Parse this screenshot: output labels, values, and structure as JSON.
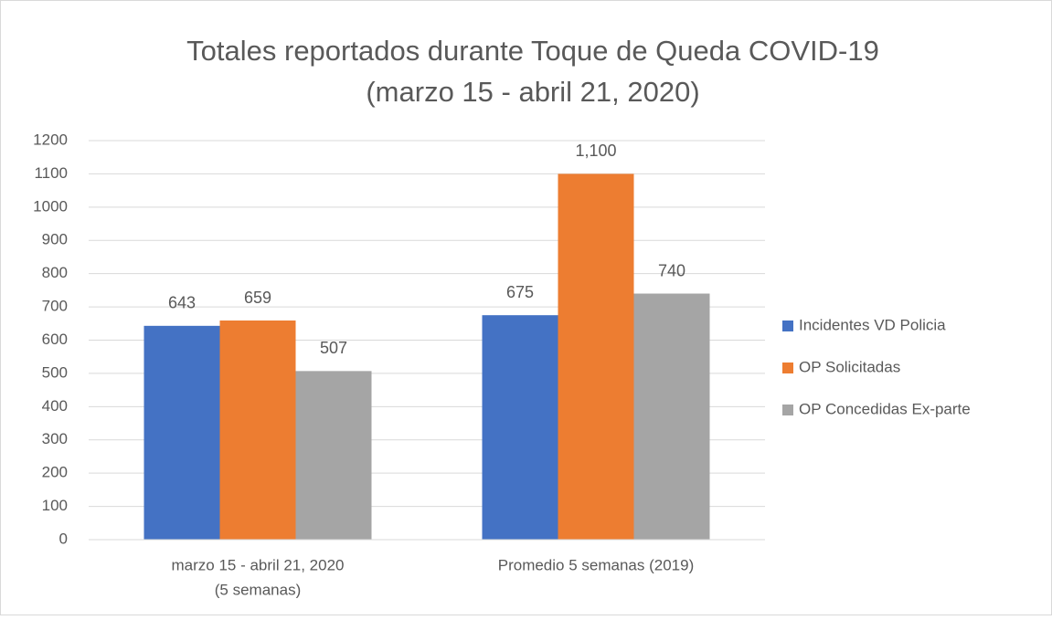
{
  "chart_data": {
    "type": "bar",
    "title": [
      "Totales reportados durante Toque de Queda COVID-19",
      "(marzo 15 - abril 21, 2020)"
    ],
    "categories": [
      [
        "marzo 15 - abril 21, 2020",
        "(5 semanas)"
      ],
      [
        "Promedio 5 semanas (2019)"
      ]
    ],
    "series": [
      {
        "name": "Incidentes VD Policia",
        "color": "#4472c4",
        "values": [
          643,
          675
        ],
        "value_labels": [
          "643",
          "675"
        ]
      },
      {
        "name": "OP Solicitadas",
        "color": "#ed7d31",
        "values": [
          659,
          1100
        ],
        "value_labels": [
          "659",
          "1,100"
        ]
      },
      {
        "name": "OP Concedidas Ex-parte",
        "color": "#a5a5a5",
        "values": [
          507,
          740
        ],
        "value_labels": [
          "507",
          "740"
        ]
      }
    ],
    "ylim": [
      0,
      1200
    ],
    "yticks": [
      0,
      100,
      200,
      300,
      400,
      500,
      600,
      700,
      800,
      900,
      1000,
      1100,
      1200
    ],
    "grid": true,
    "legend": "right"
  }
}
